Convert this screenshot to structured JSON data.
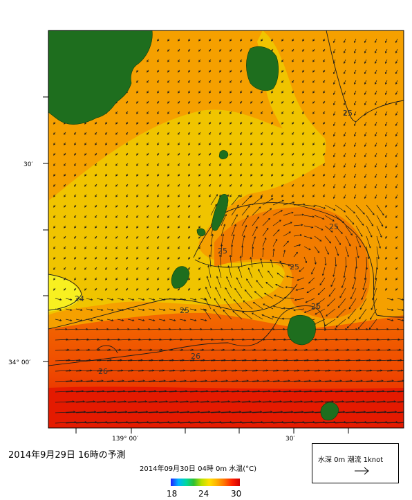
{
  "caption": "2014年9月29日 16時の予測",
  "subtitle": "2014年09月30日 04時 0m 水温(°C)",
  "lat_labels": [
    {
      "label": "30′",
      "lat_min": 30
    },
    {
      "label": "34° 00′",
      "lat_min": 0
    }
  ],
  "lon_labels": [
    {
      "label": "139° 00′",
      "lon_min": 0
    },
    {
      "label": "30′",
      "lon_min": 30
    }
  ],
  "contour_labels": [
    {
      "label": "25",
      "id": "ne"
    },
    {
      "label": "25",
      "id": "east"
    },
    {
      "label": "25",
      "id": "center"
    },
    {
      "label": "25",
      "id": "middle"
    },
    {
      "label": "25",
      "id": "west"
    },
    {
      "label": "24",
      "id": "westedge"
    },
    {
      "label": "26",
      "id": "south1"
    },
    {
      "label": "26",
      "id": "south2"
    },
    {
      "label": "26",
      "id": "southeast"
    }
  ],
  "colorbar": {
    "min": "18",
    "mid": "24",
    "max": "30",
    "stops": [
      "#2020ff",
      "#00b4ff",
      "#00d8a0",
      "#30c030",
      "#b8e000",
      "#ffe000",
      "#ffb000",
      "#ff7000",
      "#ff2000",
      "#d00000"
    ]
  },
  "legend": {
    "label": "水深 0m 潮流 1knot",
    "arrow": "→"
  },
  "colors": {
    "land": "#1e6e1e",
    "sea_base": "#f5a000",
    "sea_cool": "#f0c400",
    "sea_warm": "#f26a00",
    "sea_hot": "#e41a00"
  }
}
